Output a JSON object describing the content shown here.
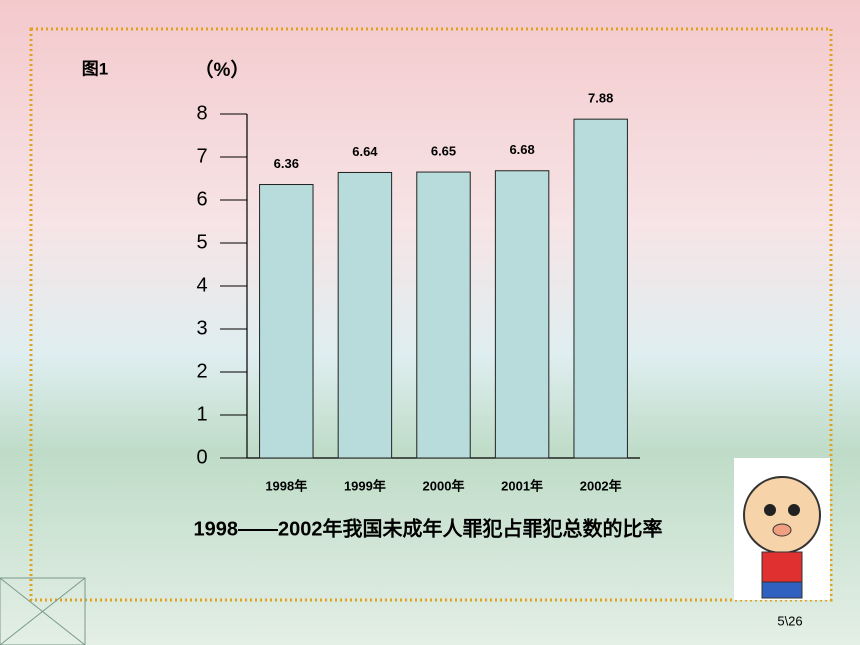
{
  "chart_data": {
    "type": "bar",
    "figure_label": "图1",
    "y_axis_label": "（%）",
    "title": "1998——2002年我国未成年人罪犯占罪犯总数的比率",
    "categories": [
      "1998年",
      "1999年",
      "2000年",
      "2001年",
      "2002年"
    ],
    "values": [
      6.36,
      6.64,
      6.65,
      6.68,
      7.88
    ],
    "color": "#b8dcdc",
    "ylim": [
      0,
      8
    ],
    "yticks": [
      0,
      1,
      2,
      3,
      4,
      5,
      6,
      7,
      8
    ]
  },
  "page_number": "5\\26"
}
